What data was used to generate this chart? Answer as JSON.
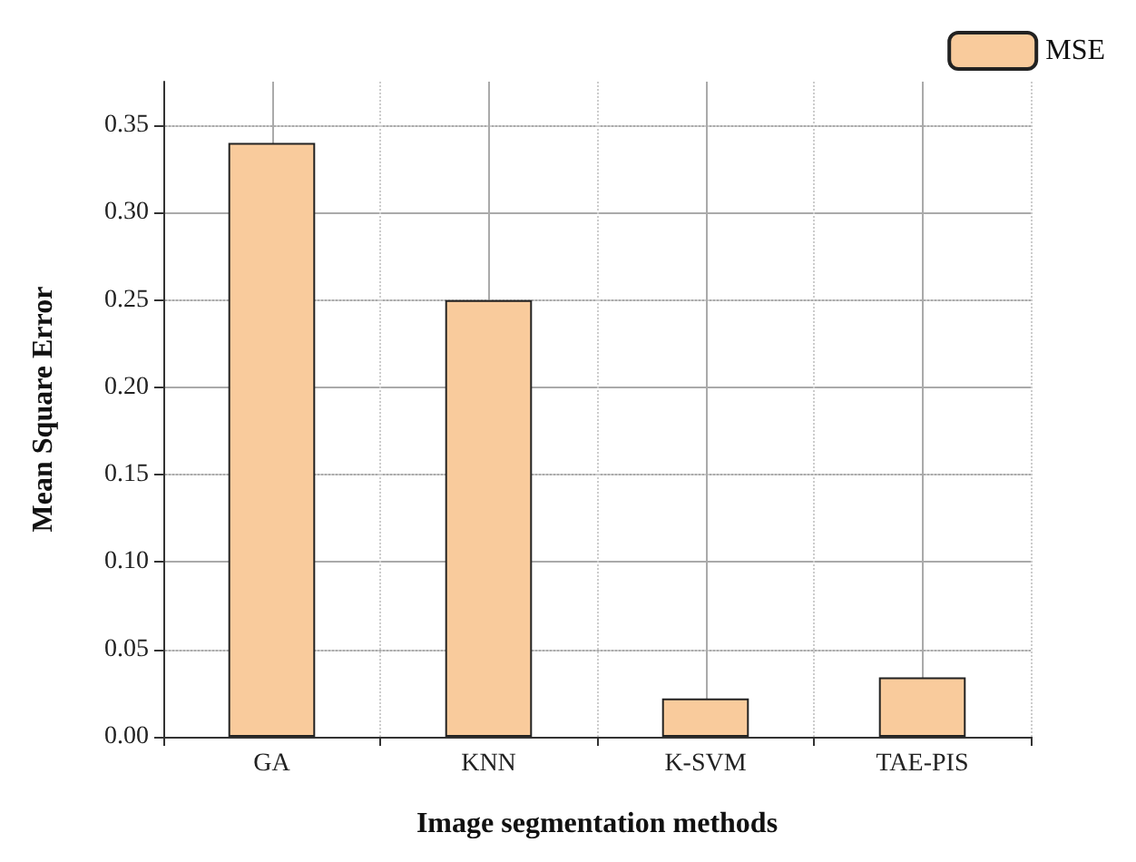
{
  "chart_data": {
    "type": "bar",
    "xlabel": "Image segmentation methods",
    "ylabel": "Mean Square Error",
    "categories": [
      "GA",
      "KNN",
      "K-SVM",
      "TAE-PIS"
    ],
    "series": [
      {
        "name": "MSE",
        "color": "#f9cb9c",
        "values": [
          0.34,
          0.25,
          0.022,
          0.034
        ]
      }
    ],
    "ylim": [
      0,
      0.375
    ],
    "yticks": [
      {
        "value": 0,
        "label": "0.00"
      },
      {
        "value": 0.05,
        "label": "0.05"
      },
      {
        "value": 0.1,
        "label": "0.10"
      },
      {
        "value": 0.15,
        "label": "0.15"
      },
      {
        "value": 0.2,
        "label": "0.20"
      },
      {
        "value": 0.25,
        "label": "0.25"
      },
      {
        "value": 0.3,
        "label": "0.30"
      },
      {
        "value": 0.35,
        "label": "0.35"
      }
    ],
    "grid": true,
    "legend": "top right"
  }
}
